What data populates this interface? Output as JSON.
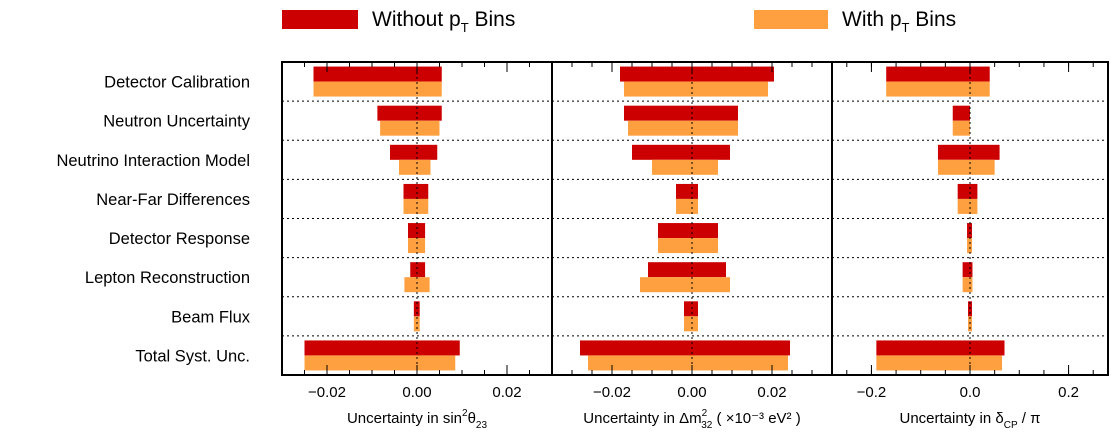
{
  "chart_data": {
    "type": "bar",
    "orientation": "horizontal",
    "legend": {
      "placement": "top",
      "entries": [
        {
          "prefix": "Without p",
          "sub": "T",
          "suffix": " Bins",
          "color": "#cc0000"
        },
        {
          "prefix": "With p",
          "sub": "T",
          "suffix": " Bins",
          "color": "#ffa040"
        }
      ]
    },
    "categories": [
      "Detector Calibration",
      "Neutron Uncertainty",
      "Neutrino Interaction Model",
      "Near-Far Differences",
      "Detector Response",
      "Lepton Reconstruction",
      "Beam Flux",
      "Total Syst. Unc."
    ],
    "panels": [
      {
        "xlabel": {
          "prefix": "Uncertainty in sin",
          "sup": "2",
          "mid": "θ",
          "sub": "23",
          "suffix": ""
        },
        "xlim": [
          -0.03,
          0.03
        ],
        "ticks": [
          -0.02,
          0.0,
          0.02
        ],
        "tick_labels": [
          "−0.02",
          "0.00",
          "0.02"
        ],
        "series": [
          {
            "name": "Without pT Bins",
            "ranges": [
              [
                -0.023,
                0.0055
              ],
              [
                -0.0088,
                0.0055
              ],
              [
                -0.006,
                0.0045
              ],
              [
                -0.003,
                0.0025
              ],
              [
                -0.002,
                0.0018
              ],
              [
                -0.0015,
                0.0018
              ],
              [
                -0.0007,
                0.0006
              ],
              [
                -0.025,
                0.0095
              ]
            ]
          },
          {
            "name": "With pT Bins",
            "ranges": [
              [
                -0.023,
                0.0055
              ],
              [
                -0.0082,
                0.005
              ],
              [
                -0.004,
                0.003
              ],
              [
                -0.003,
                0.0025
              ],
              [
                -0.002,
                0.0018
              ],
              [
                -0.0028,
                0.0028
              ],
              [
                -0.0007,
                0.0006
              ],
              [
                -0.025,
                0.0085
              ]
            ]
          }
        ]
      },
      {
        "xlabel": {
          "prefix": "Uncertainty in Δm",
          "sup": "2",
          "mid": "",
          "sub": "32",
          "suffix": " ( ×10⁻³ eV² )"
        },
        "xlim": [
          -0.035,
          0.035
        ],
        "ticks": [
          -0.02,
          0.0,
          0.02
        ],
        "tick_labels": [
          "−0.02",
          "0.00",
          "0.02"
        ],
        "series": [
          {
            "name": "Without pT Bins",
            "ranges": [
              [
                -0.018,
                0.0205
              ],
              [
                -0.017,
                0.0115
              ],
              [
                -0.015,
                0.0095
              ],
              [
                -0.004,
                0.0015
              ],
              [
                -0.0085,
                0.0065
              ],
              [
                -0.011,
                0.0085
              ],
              [
                -0.002,
                0.0015
              ],
              [
                -0.028,
                0.0245
              ]
            ]
          },
          {
            "name": "With pT Bins",
            "ranges": [
              [
                -0.017,
                0.019
              ],
              [
                -0.016,
                0.0115
              ],
              [
                -0.01,
                0.0065
              ],
              [
                -0.004,
                0.0015
              ],
              [
                -0.0085,
                0.0065
              ],
              [
                -0.013,
                0.0095
              ],
              [
                -0.002,
                0.0015
              ],
              [
                -0.026,
                0.024
              ]
            ]
          }
        ]
      },
      {
        "xlabel": {
          "prefix": "Uncertainty in δ",
          "sup": "",
          "mid": "",
          "sub": "CP",
          "suffix": " / π"
        },
        "xlim": [
          -0.28,
          0.28
        ],
        "ticks": [
          -0.2,
          0.0,
          0.2
        ],
        "tick_labels": [
          "−0.2",
          "0.0",
          "0.2"
        ],
        "series": [
          {
            "name": "Without pT Bins",
            "ranges": [
              [
                -0.17,
                0.04
              ],
              [
                -0.035,
                0.0
              ],
              [
                -0.065,
                0.06
              ],
              [
                -0.025,
                0.015
              ],
              [
                -0.006,
                0.004
              ],
              [
                -0.015,
                0.005
              ],
              [
                -0.004,
                0.004
              ],
              [
                -0.19,
                0.07
              ]
            ]
          },
          {
            "name": "With pT Bins",
            "ranges": [
              [
                -0.17,
                0.04
              ],
              [
                -0.035,
                0.0
              ],
              [
                -0.065,
                0.05
              ],
              [
                -0.025,
                0.015
              ],
              [
                -0.006,
                0.004
              ],
              [
                -0.015,
                0.005
              ],
              [
                -0.004,
                0.004
              ],
              [
                -0.19,
                0.065
              ]
            ]
          }
        ]
      }
    ]
  }
}
